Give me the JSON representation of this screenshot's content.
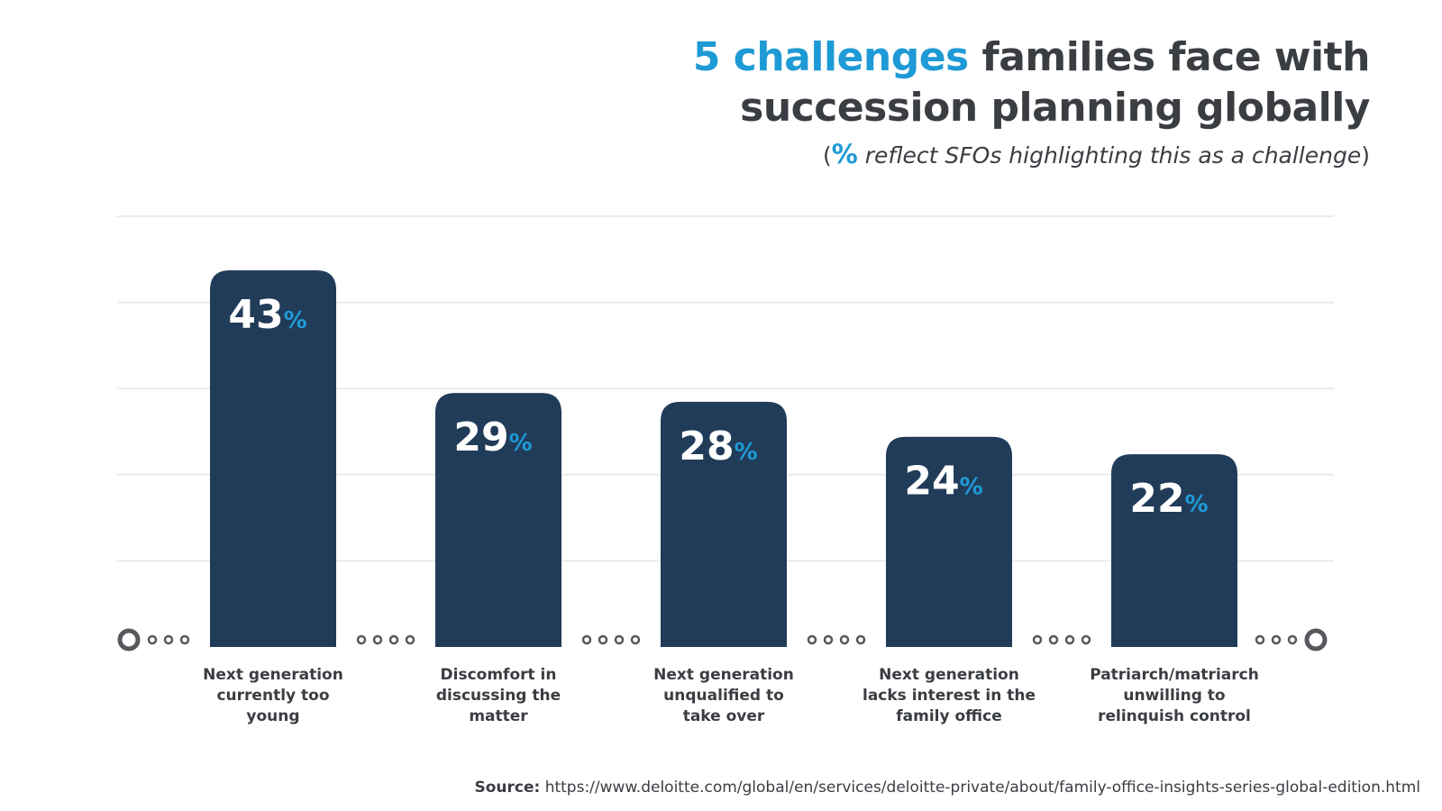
{
  "title": {
    "accent": "5 challenges",
    "rest_line1": " families face with",
    "line2": "succession planning globally"
  },
  "subtitle": {
    "open": "(",
    "pct": "%",
    "text": " reflect SFOs highlighting this as a challenge",
    "close": ")"
  },
  "source": {
    "label": "Source:",
    "url": "https://www.deloitte.com/global/en/services/deloitte-private/about/family-office-insights-series-global-edition.html"
  },
  "colors": {
    "bar": "#213c59",
    "accent": "#1e9ad6",
    "text": "#3a3d42",
    "grid": "#ebebeb",
    "dots": "#55585d"
  },
  "chart_data": {
    "type": "bar",
    "categories": [
      [
        "Next generation",
        "currently too",
        "young"
      ],
      [
        "Discomfort in",
        "discussing the",
        "matter"
      ],
      [
        "Next generation",
        "unqualified to",
        "take over"
      ],
      [
        "Next generation",
        "lacks interest in the",
        "family office"
      ],
      [
        "Patriarch/matriarch",
        "unwilling to",
        "relinquish control"
      ]
    ],
    "values": [
      43,
      29,
      28,
      24,
      22
    ],
    "value_suffix": "%",
    "ylim": [
      0,
      50
    ],
    "grid": true
  }
}
